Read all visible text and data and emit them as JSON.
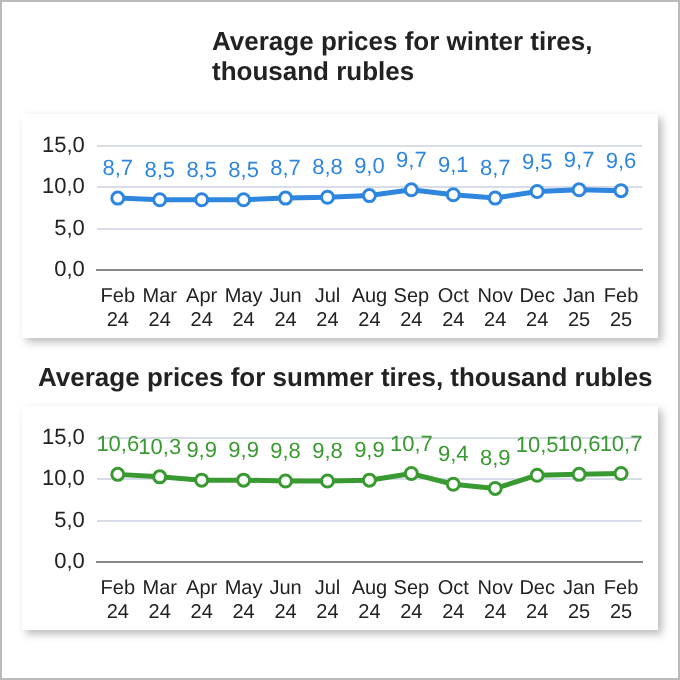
{
  "chart_data": [
    {
      "type": "line",
      "title": "Average prices for winter tires, thousand rubles",
      "categories": [
        "Feb 24",
        "Mar 24",
        "Apr 24",
        "May 24",
        "Jun 24",
        "Jul 24",
        "Aug 24",
        "Sep 24",
        "Oct 24",
        "Nov 24",
        "Dec 24",
        "Jan 25",
        "Feb 25"
      ],
      "series": [
        {
          "color": "#2e86de",
          "values": [
            8.7,
            8.5,
            8.5,
            8.5,
            8.7,
            8.8,
            9.0,
            9.7,
            9.1,
            8.7,
            9.5,
            9.7,
            9.6
          ],
          "value_labels": [
            "8,7",
            "8,5",
            "8,5",
            "8,5",
            "8,7",
            "8,8",
            "9,0",
            "9,7",
            "9,1",
            "8,7",
            "9,5",
            "9,7",
            "9,6"
          ]
        }
      ],
      "ylim": [
        0,
        15
      ],
      "yticks": [
        {
          "value": 0,
          "label": "0,0"
        },
        {
          "value": 5,
          "label": "5,0"
        },
        {
          "value": 10,
          "label": "10,0"
        },
        {
          "value": 15,
          "label": "15,0"
        }
      ],
      "grid": "y",
      "legend": false,
      "marker": "circle",
      "line_style": "solid"
    },
    {
      "type": "line",
      "title": "Average prices for summer tires, thousand rubles",
      "categories": [
        "Feb 24",
        "Mar 24",
        "Apr 24",
        "May 24",
        "Jun 24",
        "Jul 24",
        "Aug 24",
        "Sep 24",
        "Oct 24",
        "Nov 24",
        "Dec 24",
        "Jan 25",
        "Feb 25"
      ],
      "series": [
        {
          "color": "#3a9a32",
          "values": [
            10.6,
            10.3,
            9.9,
            9.9,
            9.8,
            9.8,
            9.9,
            10.7,
            9.4,
            8.9,
            10.5,
            10.6,
            10.7
          ],
          "value_labels": [
            "10,6",
            "10,3",
            "9,9",
            "9,9",
            "9,8",
            "9,8",
            "9,9",
            "10,7",
            "9,4",
            "8,9",
            "10,5",
            "10,6",
            "10,7"
          ]
        }
      ],
      "ylim": [
        0,
        15
      ],
      "yticks": [
        {
          "value": 0,
          "label": "0,0"
        },
        {
          "value": 5,
          "label": "5,0"
        },
        {
          "value": 10,
          "label": "10,0"
        },
        {
          "value": 15,
          "label": "15,0"
        }
      ],
      "grid": "y",
      "legend": false,
      "marker": "circle",
      "line_style": "solid"
    }
  ]
}
